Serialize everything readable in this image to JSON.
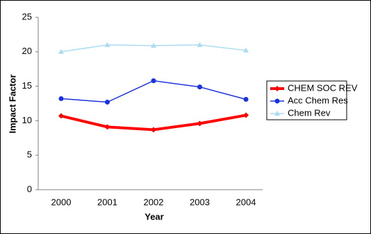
{
  "chart_data": {
    "type": "line",
    "x_label": "Year",
    "y_label": "Impact Factor",
    "categories": [
      "2000",
      "2001",
      "2002",
      "2003",
      "2004"
    ],
    "series": [
      {
        "name": "CHEM SOC REV",
        "color": "#ff0000",
        "marker": "diamond",
        "line_width": 4,
        "values": [
          10.7,
          9.1,
          8.7,
          9.6,
          10.8
        ]
      },
      {
        "name": "Acc Chem Res",
        "color": "#1a33e0",
        "marker": "circle",
        "line_width": 1.5,
        "values": [
          13.2,
          12.7,
          15.8,
          14.9,
          13.1
        ]
      },
      {
        "name": "Chem Rev",
        "color": "#a9dcf2",
        "marker": "triangle",
        "line_width": 1.5,
        "values": [
          20.0,
          21.0,
          20.9,
          21.0,
          20.2
        ]
      }
    ],
    "ylim": [
      0,
      25
    ],
    "yticks": [
      0,
      5,
      10,
      15,
      20,
      25
    ],
    "grid": false,
    "legend": "right"
  }
}
